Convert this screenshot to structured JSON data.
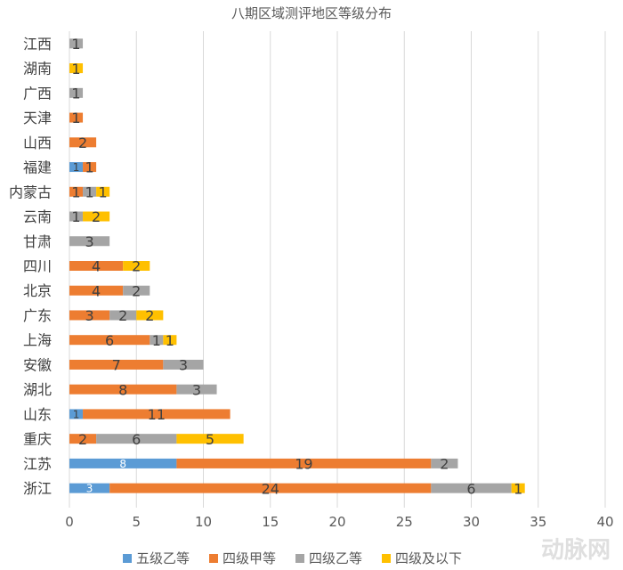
{
  "chart_data": {
    "type": "bar",
    "orientation": "horizontal",
    "stacked": true,
    "title": "八期区域测评地区等级分布",
    "categories": [
      "江西",
      "湖南",
      "广西",
      "天津",
      "山西",
      "福建",
      "内蒙古",
      "云南",
      "甘肃",
      "四川",
      "北京",
      "广东",
      "上海",
      "安徽",
      "湖北",
      "山东",
      "重庆",
      "江苏",
      "浙江"
    ],
    "series": [
      {
        "name": "五级乙等",
        "color": "#5b9bd5",
        "values": [
          0,
          0,
          0,
          0,
          0,
          1,
          0,
          0,
          0,
          0,
          0,
          0,
          0,
          0,
          0,
          1,
          0,
          8,
          3
        ]
      },
      {
        "name": "四级甲等",
        "color": "#ed7d31",
        "values": [
          0,
          0,
          0,
          1,
          2,
          1,
          1,
          0,
          0,
          4,
          4,
          3,
          6,
          7,
          8,
          11,
          2,
          19,
          24
        ]
      },
      {
        "name": "四级乙等",
        "color": "#a5a5a5",
        "values": [
          1,
          0,
          1,
          0,
          0,
          0,
          1,
          1,
          3,
          0,
          2,
          2,
          1,
          3,
          3,
          0,
          6,
          2,
          6
        ]
      },
      {
        "name": "四级及以下",
        "color": "#ffc000",
        "values": [
          0,
          1,
          0,
          0,
          0,
          0,
          1,
          2,
          0,
          2,
          0,
          2,
          1,
          0,
          0,
          0,
          5,
          0,
          1
        ]
      }
    ],
    "xlim": [
      0,
      40
    ],
    "xticks": [
      0,
      5,
      10,
      15,
      20,
      25,
      30,
      35,
      40
    ],
    "grid": "vertical",
    "legend": "bottom",
    "data_labels": true
  },
  "watermark": "动脉网"
}
